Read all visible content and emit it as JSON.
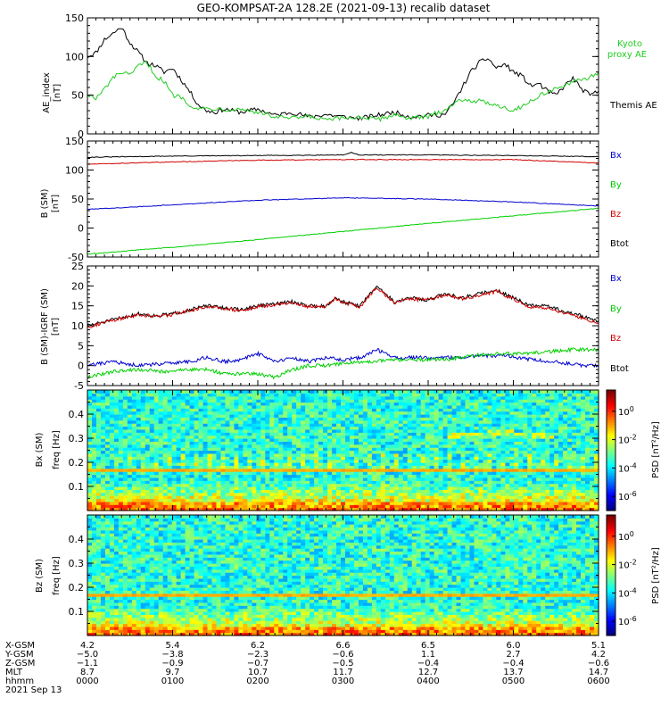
{
  "title": "GEO-KOMPSAT-2A 128.2E (2021-09-13) recalib dataset",
  "colors": {
    "bx": "#0000d0",
    "by": "#00d000",
    "bz": "#d00000",
    "btot": "#000000",
    "kyoto": "#22cc22",
    "themis": "#000000"
  },
  "chart_data": [
    {
      "type": "line",
      "ylabel": "AE_index [nT]",
      "ylim": [
        0,
        150
      ],
      "yticks": [
        0,
        50,
        100,
        150
      ],
      "xlim": [
        0,
        6
      ],
      "legend": [
        "Kyoto proxy AE",
        "Themis AE"
      ],
      "series": [
        {
          "name": "Themis AE",
          "color": "#000000",
          "x": [
            0,
            0.1,
            0.2,
            0.3,
            0.4,
            0.5,
            0.6,
            0.7,
            0.8,
            0.9,
            1.0,
            1.1,
            1.2,
            1.3,
            1.4,
            1.5,
            1.6,
            1.7,
            1.8,
            1.9,
            2.0,
            2.2,
            2.4,
            2.6,
            2.8,
            3.0,
            3.2,
            3.4,
            3.6,
            3.8,
            4.0,
            4.2,
            4.3,
            4.4,
            4.5,
            4.6,
            4.7,
            4.8,
            4.9,
            5.0,
            5.1,
            5.2,
            5.3,
            5.4,
            5.5,
            5.6,
            5.7,
            5.8,
            5.9,
            6.0
          ],
          "y": [
            100,
            105,
            122,
            130,
            138,
            118,
            105,
            92,
            88,
            80,
            85,
            70,
            55,
            38,
            30,
            28,
            32,
            30,
            28,
            30,
            32,
            24,
            28,
            22,
            25,
            22,
            20,
            24,
            28,
            22,
            24,
            25,
            40,
            60,
            80,
            92,
            98,
            85,
            90,
            80,
            75,
            62,
            65,
            55,
            50,
            62,
            72,
            58,
            50,
            55
          ]
        },
        {
          "name": "Kyoto proxy AE",
          "color": "#22cc22",
          "x": [
            0,
            0.1,
            0.2,
            0.3,
            0.4,
            0.5,
            0.6,
            0.7,
            0.8,
            0.9,
            1.0,
            1.1,
            1.2,
            1.3,
            1.4,
            1.5,
            1.6,
            1.8,
            2.0,
            2.2,
            2.4,
            2.6,
            2.8,
            3.0,
            3.2,
            3.4,
            3.6,
            3.8,
            4.0,
            4.2,
            4.4,
            4.6,
            4.8,
            5.0,
            5.2,
            5.4,
            5.6,
            5.8,
            6.0
          ],
          "y": [
            52,
            45,
            58,
            72,
            80,
            75,
            88,
            92,
            75,
            68,
            50,
            48,
            38,
            32,
            33,
            33,
            32,
            32,
            28,
            22,
            20,
            22,
            18,
            20,
            22,
            18,
            25,
            20,
            22,
            32,
            45,
            42,
            38,
            30,
            42,
            55,
            62,
            70,
            78
          ]
        }
      ]
    },
    {
      "type": "line",
      "ylabel": "B (SM) [nT]",
      "ylim": [
        -50,
        150
      ],
      "yticks": [
        -50,
        0,
        50,
        100,
        150
      ],
      "xlim": [
        0,
        6
      ],
      "legend": [
        "Bx",
        "By",
        "Bz",
        "Btot"
      ],
      "series": [
        {
          "name": "Btot",
          "color": "#000000",
          "x": [
            0,
            1,
            2,
            3,
            3.1,
            3.2,
            4,
            5,
            6
          ],
          "y": [
            122,
            124,
            125,
            126,
            130,
            126,
            126,
            125,
            123
          ]
        },
        {
          "name": "Bz",
          "color": "#d00000",
          "x": [
            0,
            1,
            2,
            3,
            4,
            5,
            6
          ],
          "y": [
            110,
            114,
            117,
            118,
            118,
            118,
            112
          ]
        },
        {
          "name": "Bx",
          "color": "#0000d0",
          "x": [
            0,
            1,
            2,
            3,
            4,
            5,
            6
          ],
          "y": [
            32,
            40,
            48,
            52,
            50,
            45,
            38
          ]
        },
        {
          "name": "By",
          "color": "#00d000",
          "x": [
            0,
            1,
            2,
            3,
            4,
            5,
            6
          ],
          "y": [
            -45,
            -33,
            -20,
            -6,
            8,
            21,
            34
          ]
        }
      ]
    },
    {
      "type": "line",
      "ylabel": "B (SM)-IGRF (SM) [nT]",
      "ylim": [
        -5,
        25
      ],
      "yticks": [
        -5,
        0,
        5,
        10,
        15,
        20,
        25
      ],
      "xlim": [
        0,
        6
      ],
      "legend": [
        "Bx",
        "By",
        "Bz",
        "Btot"
      ],
      "series": [
        {
          "name": "Btot",
          "color": "#000000",
          "x": [
            0,
            0.2,
            0.4,
            0.6,
            0.8,
            1.0,
            1.2,
            1.4,
            1.6,
            1.8,
            2.0,
            2.2,
            2.4,
            2.6,
            2.8,
            2.9,
            3.0,
            3.2,
            3.4,
            3.6,
            3.8,
            4.0,
            4.2,
            4.4,
            4.6,
            4.8,
            5.0,
            5.2,
            5.4,
            5.6,
            5.8,
            6.0
          ],
          "y": [
            10,
            11,
            12,
            13,
            12.5,
            13,
            14,
            15,
            14.5,
            14,
            15,
            15.5,
            16,
            15,
            15,
            17,
            16,
            15,
            20,
            16,
            17,
            16.5,
            18,
            17,
            18,
            19,
            17,
            15,
            15,
            13.5,
            12.5,
            11
          ]
        },
        {
          "name": "Bz",
          "color": "#d00000",
          "x": [
            0,
            0.2,
            0.4,
            0.6,
            0.8,
            1.0,
            1.2,
            1.4,
            1.6,
            1.8,
            2.0,
            2.2,
            2.4,
            2.6,
            2.8,
            2.9,
            3.0,
            3.2,
            3.4,
            3.6,
            3.8,
            4.0,
            4.2,
            4.4,
            4.6,
            4.8,
            5.0,
            5.2,
            5.4,
            5.6,
            5.8,
            6.0
          ],
          "y": [
            9.7,
            10.8,
            11.8,
            12.8,
            12.3,
            12.8,
            13.8,
            14.8,
            14.3,
            13.8,
            14.8,
            15.3,
            15.8,
            14.8,
            14.8,
            16.8,
            15.8,
            14.8,
            19.6,
            15.8,
            16.8,
            16.3,
            17.8,
            16.8,
            17.7,
            18.6,
            16.6,
            14.6,
            14.6,
            13,
            12,
            10.6
          ]
        },
        {
          "name": "Bx",
          "color": "#0000d0",
          "x": [
            0,
            0.3,
            0.6,
            0.9,
            1.2,
            1.4,
            1.6,
            1.8,
            2.0,
            2.2,
            2.4,
            2.6,
            2.8,
            3.0,
            3.2,
            3.4,
            3.6,
            3.8,
            4.0,
            4.3,
            4.6,
            4.9,
            5.2,
            5.5,
            5.8,
            6.0
          ],
          "y": [
            0,
            1,
            0,
            0.5,
            1,
            2,
            1,
            1.5,
            3,
            1,
            2,
            1,
            2,
            1.5,
            2,
            4,
            2,
            2,
            2,
            2,
            2.5,
            2.5,
            1.5,
            1,
            0,
            0
          ]
        },
        {
          "name": "By",
          "color": "#00d000",
          "x": [
            0,
            0.3,
            0.6,
            0.9,
            1.2,
            1.4,
            1.6,
            1.8,
            2.0,
            2.2,
            2.4,
            2.6,
            2.8,
            3.0,
            3.3,
            3.6,
            3.9,
            4.2,
            4.5,
            4.8,
            5.1,
            5.4,
            5.7,
            6.0
          ],
          "y": [
            -3,
            -1.5,
            -1,
            -1.5,
            -1,
            -1,
            -2,
            -2,
            -2,
            -3,
            -1,
            0,
            0,
            0.5,
            1,
            1.5,
            1.5,
            1.5,
            2.5,
            3,
            3,
            3.5,
            4,
            4
          ]
        }
      ]
    },
    {
      "type": "heatmap",
      "ylabel": "Bx (SM) freq [Hz]",
      "ylim": [
        0,
        0.5
      ],
      "yticks": [
        0.1,
        0.2,
        0.3,
        0.4
      ],
      "xlim": [
        0,
        6
      ],
      "colorbar_label": "PSD [nT²/Hz]",
      "colorbar_ticks": [
        "10^0",
        "10^-2",
        "10^-4",
        "10^-6"
      ],
      "background_log_psd": -3.5,
      "low_freq_log_psd": -1.0,
      "harmonic_line_hz": 0.167
    },
    {
      "type": "heatmap",
      "ylabel": "Bz (SM) freq [Hz]",
      "ylim": [
        0,
        0.5
      ],
      "yticks": [
        0.1,
        0.2,
        0.3,
        0.4
      ],
      "xlim": [
        0,
        6
      ],
      "colorbar_label": "PSD [nT²/Hz]",
      "colorbar_ticks": [
        "10^0",
        "10^-2",
        "10^-4",
        "10^-6"
      ],
      "background_log_psd": -3.5,
      "low_freq_log_psd": -1.0,
      "harmonic_line_hz": 0.167
    }
  ],
  "labels": {
    "panel1": {
      "y1": "AE_index",
      "y2": "[nT]",
      "legend": [
        "Kyoto",
        "proxy AE",
        "Themis AE"
      ]
    },
    "panel2": {
      "y1": "B (SM)",
      "y2": "[nT]",
      "legend": [
        "Bx",
        "By",
        "Bz",
        "Btot"
      ]
    },
    "panel3": {
      "y1": "B (SM)-IGRF (SM)",
      "y2": "[nT]",
      "legend": [
        "Bx",
        "By",
        "Bz",
        "Btot"
      ]
    },
    "panel4": {
      "y1": "Bx (SM)",
      "y2": "freq [Hz]",
      "cb": "PSD [nT²/Hz]"
    },
    "panel5": {
      "y1": "Bz (SM)",
      "y2": "freq [Hz]",
      "cb": "PSD [nT²/Hz]"
    }
  },
  "x_axis": {
    "row_labels": [
      "X-GSM",
      "Y-GSM",
      "Z-GSM",
      "MLT",
      "hhmm",
      "2021 Sep 13"
    ],
    "columns": [
      {
        "x": 0,
        "xgsm": "4.2",
        "ygsm": "−5.0",
        "zgsm": "−1.1",
        "mlt": "8.7",
        "hhmm": "0000"
      },
      {
        "x": 1,
        "xgsm": "5.4",
        "ygsm": "−3.8",
        "zgsm": "−0.9",
        "mlt": "9.7",
        "hhmm": "0100"
      },
      {
        "x": 2,
        "xgsm": "6.2",
        "ygsm": "−2.3",
        "zgsm": "−0.7",
        "mlt": "10.7",
        "hhmm": "0200"
      },
      {
        "x": 3,
        "xgsm": "6.6",
        "ygsm": "−0.6",
        "zgsm": "−0.5",
        "mlt": "11.7",
        "hhmm": "0300"
      },
      {
        "x": 4,
        "xgsm": "6.5",
        "ygsm": "1.1",
        "zgsm": "−0.4",
        "mlt": "12.7",
        "hhmm": "0400"
      },
      {
        "x": 5,
        "xgsm": "6.0",
        "ygsm": "2.7",
        "zgsm": "−0.4",
        "mlt": "13.7",
        "hhmm": "0500"
      },
      {
        "x": 6,
        "xgsm": "5.1",
        "ygsm": "4.2",
        "zgsm": "−0.6",
        "mlt": "14.7",
        "hhmm": "0600"
      }
    ]
  }
}
